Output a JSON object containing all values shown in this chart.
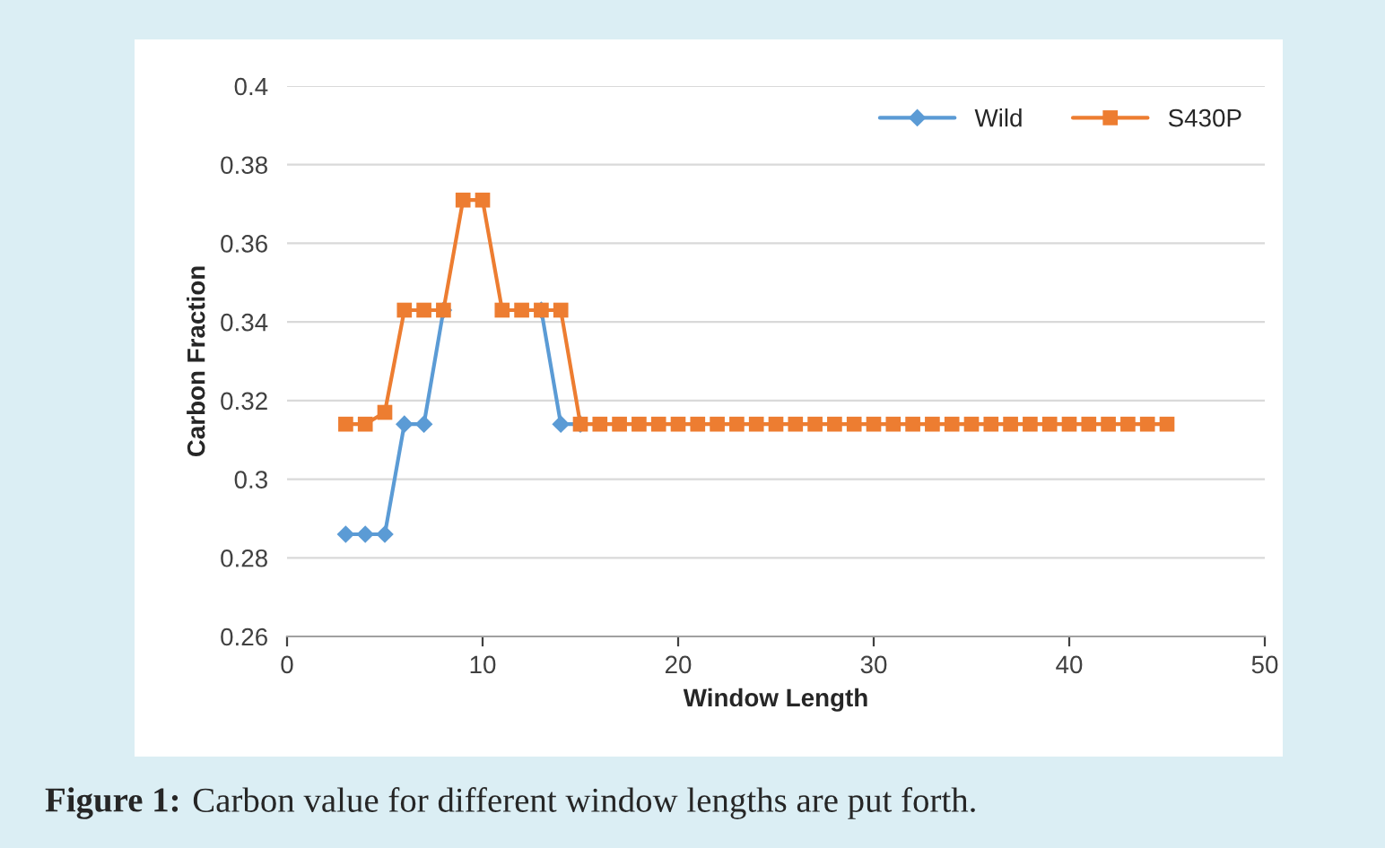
{
  "chart_data": {
    "type": "line",
    "xlabel": "Window Length",
    "ylabel": "Carbon Fraction",
    "x": [
      3,
      4,
      5,
      6,
      7,
      8,
      9,
      10,
      11,
      12,
      13,
      14,
      15,
      16,
      17,
      18,
      19,
      20,
      21,
      22,
      23,
      24,
      25,
      26,
      27,
      28,
      29,
      30,
      31,
      32,
      33,
      34,
      35,
      36,
      37,
      38,
      39,
      40,
      41,
      42,
      43,
      44,
      45
    ],
    "series": [
      {
        "name": "Wild",
        "color": "#5b9bd5",
        "marker": "diamond",
        "values": [
          0.286,
          0.286,
          0.286,
          0.314,
          0.314,
          0.343,
          null,
          null,
          null,
          null,
          0.343,
          0.314,
          0.314,
          null,
          null,
          null,
          null,
          null,
          null,
          null,
          null,
          null,
          null,
          null,
          null,
          null,
          null,
          null,
          null,
          null,
          null,
          null,
          null,
          null,
          null,
          null,
          null,
          null,
          null,
          null,
          null,
          null,
          null
        ]
      },
      {
        "name": "S430P",
        "color": "#ed7d31",
        "marker": "square",
        "values": [
          0.314,
          0.314,
          0.317,
          0.343,
          0.343,
          0.343,
          0.371,
          0.371,
          0.343,
          0.343,
          0.343,
          0.343,
          0.314,
          0.314,
          0.314,
          0.314,
          0.314,
          0.314,
          0.314,
          0.314,
          0.314,
          0.314,
          0.314,
          0.314,
          0.314,
          0.314,
          0.314,
          0.314,
          0.314,
          0.314,
          0.314,
          0.314,
          0.314,
          0.314,
          0.314,
          0.314,
          0.314,
          0.314,
          0.314,
          0.314,
          0.314,
          0.314,
          0.314
        ]
      }
    ],
    "xlim": [
      0,
      50
    ],
    "xticks": [
      0,
      10,
      20,
      30,
      40,
      50
    ],
    "ylim": [
      0.26,
      0.4
    ],
    "yticks": [
      0.26,
      0.28,
      0.3,
      0.32,
      0.34,
      0.36,
      0.38,
      0.4
    ],
    "grid": "y",
    "legend": "top right",
    "line_style": "solid",
    "annotations": [
      "Figure 1:",
      "Carbon value for different window lengths are put forth."
    ]
  }
}
